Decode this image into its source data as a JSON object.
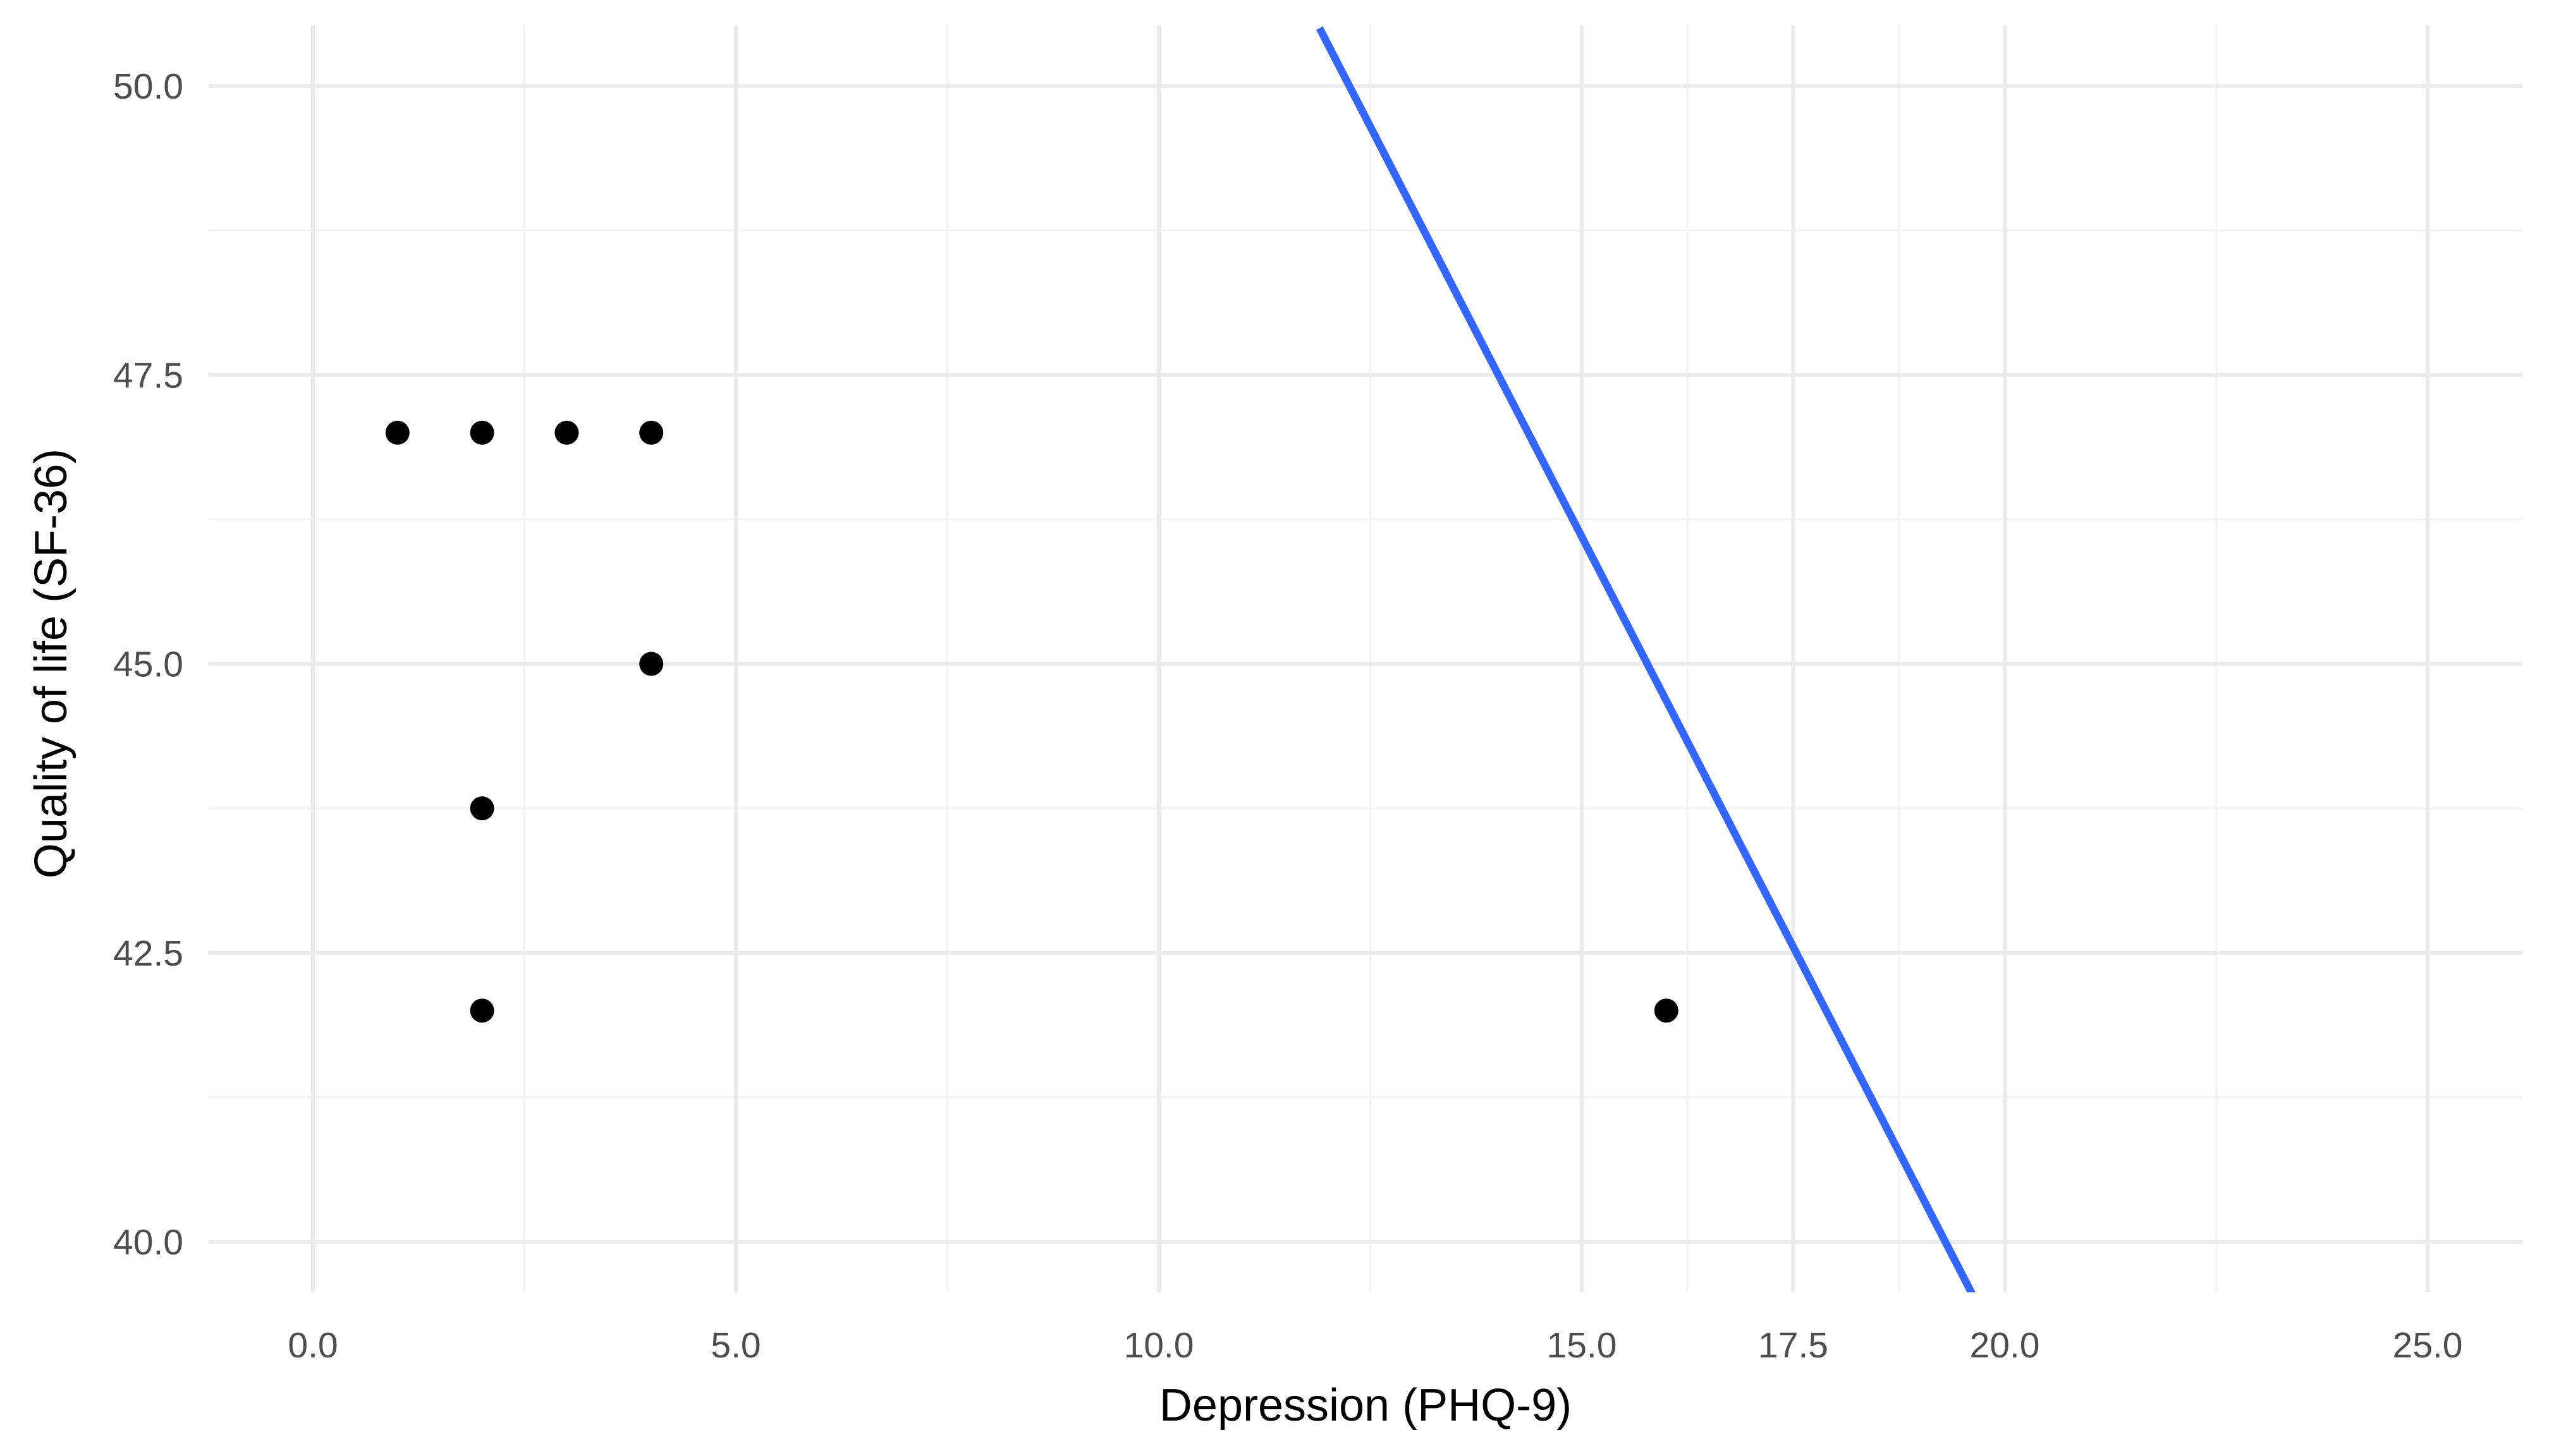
{
  "colors": {
    "background": "#ffffff",
    "grid_major": "#ebebeb",
    "grid_minor": "#f3f3f3",
    "point": "#000000",
    "fit_line": "#3366ff",
    "tick_text": "#4d4d4d"
  },
  "chart_data": {
    "type": "scatter",
    "title": "",
    "xlabel": "Depression (PHQ-9)",
    "ylabel": "Quality of life (SF-36)",
    "xlim": [
      -2.45,
      26.0
    ],
    "ylim": [
      39.5,
      50.5
    ],
    "x_ticks": [
      0.0,
      5.0,
      10.0,
      15.0,
      17.5,
      20.0,
      25.0
    ],
    "x_tick_labels": [
      "0.0",
      "5.0",
      "10.0",
      "15.0",
      "17.5",
      "20.0",
      "25.0"
    ],
    "x_minor_ticks": [
      2.5,
      7.5,
      12.5,
      16.25,
      18.75,
      22.5
    ],
    "y_ticks": [
      40.0,
      42.5,
      45.0,
      47.5,
      50.0
    ],
    "y_tick_labels": [
      "40.0",
      "42.5",
      "45.0",
      "47.5",
      "50.0"
    ],
    "y_minor_ticks": [
      41.25,
      43.75,
      46.25,
      48.75
    ],
    "grid": true,
    "legend": "none",
    "points": [
      {
        "x": 1,
        "y": 47.0
      },
      {
        "x": 2,
        "y": 47.0
      },
      {
        "x": 3,
        "y": 47.0
      },
      {
        "x": 4,
        "y": 47.0
      },
      {
        "x": 4,
        "y": 45.0
      },
      {
        "x": 2,
        "y": 43.75
      },
      {
        "x": 2,
        "y": 42.0
      },
      {
        "x": 16,
        "y": 42.0
      }
    ],
    "fit_line": {
      "x": [
        11.9,
        19.65
      ],
      "y": [
        50.5,
        39.5
      ]
    }
  }
}
